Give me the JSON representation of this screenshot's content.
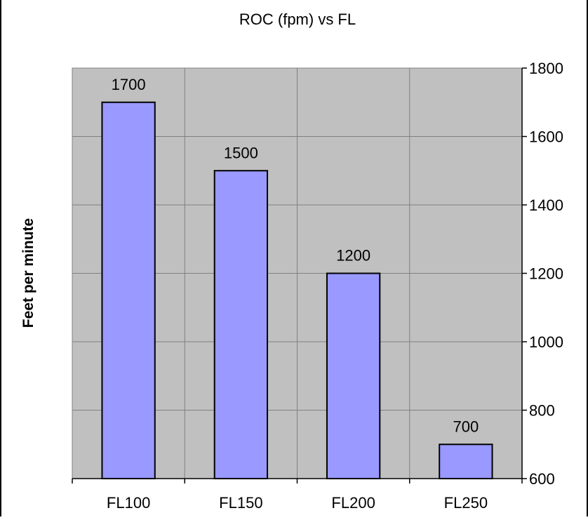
{
  "chart_data": {
    "type": "bar",
    "title": "ROC (fpm) vs FL",
    "ylabel": "Feet per minute",
    "xlabel": "",
    "categories": [
      "FL100",
      "FL150",
      "FL200",
      "FL250"
    ],
    "values": [
      1700,
      1500,
      1200,
      700
    ],
    "data_labels": [
      "1700",
      "1500",
      "1200",
      "700"
    ],
    "ylim": [
      600,
      1800
    ],
    "yticks": [
      600,
      800,
      1000,
      1200,
      1400,
      1600,
      1800
    ],
    "ytick_labels": [
      "600",
      "800",
      "1000",
      "1200",
      "1400",
      "1600",
      "1800"
    ],
    "y_axis_side": "right",
    "grid": true,
    "legend": "none",
    "colors": {
      "bar_fill": "#9999ff",
      "plot_background": "#c0c0c0",
      "gridline": "#808080",
      "axis": "#000000"
    }
  }
}
